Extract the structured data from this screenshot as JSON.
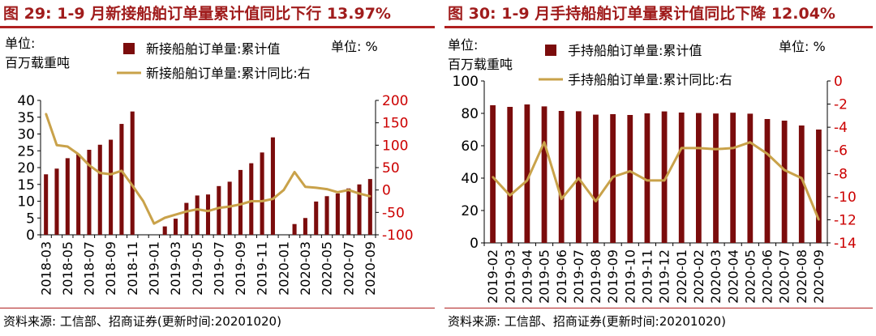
{
  "colors": {
    "bar": "#7b0c0c",
    "line": "#c9a24a",
    "title": "#a01c1c"
  },
  "charts": [
    {
      "title": "图 29:  1-9 月新接船舶订单量累计值同比下行 13.97%",
      "unit_left": "单位:\n百万载重吨",
      "unit_right": "单位:  %",
      "source": "资料来源:  工信部、招商证券(更新时间:20201020)"
    },
    {
      "title": "图 30:  1-9 月手持船舶订单量累计值同比下降 12.04%",
      "unit_left": "单位:\n百万载重吨",
      "unit_right": "单位:  %",
      "source": "资料来源:  工信部、招商证券(更新时间:20201020)"
    }
  ],
  "chart_data": [
    {
      "type": "bar",
      "categories": [
        "2018-03",
        "2018-04",
        "2018-05",
        "2018-06",
        "2018-07",
        "2018-08",
        "2018-09",
        "2018-10",
        "2018-11",
        "2018-12",
        "2019-01",
        "2019-02",
        "2019-03",
        "2019-04",
        "2019-05",
        "2019-06",
        "2019-07",
        "2019-08",
        "2019-09",
        "2019-10",
        "2019-11",
        "2019-12",
        "2020-01",
        "2020-02",
        "2020-03",
        "2020-04",
        "2020-05",
        "2020-06",
        "2020-07",
        "2020-08",
        "2020-09"
      ],
      "x_tick_labels": [
        "2018-03",
        "2018-05",
        "2018-07",
        "2018-09",
        "2018-11",
        "2019-01",
        "2019-03",
        "2019-05",
        "2019-07",
        "2019-09",
        "2019-11",
        "2020-01",
        "2020-03",
        "2020-05",
        "2020-07",
        "2020-09"
      ],
      "series": [
        {
          "name": "新接船舶订单量:累计值",
          "type": "bar",
          "axis": "left",
          "values": [
            18,
            19.7,
            22.8,
            24,
            25.3,
            26.8,
            28.3,
            33,
            36.7,
            null,
            null,
            2.5,
            4.8,
            9.5,
            11.7,
            12,
            14.5,
            15.8,
            19.3,
            21.3,
            24.5,
            29,
            null,
            3.2,
            5,
            9.9,
            11.5,
            12.3,
            13.8,
            15,
            16.6
          ]
        },
        {
          "name": "新接船舶订单量:累计同比:右",
          "type": "line",
          "axis": "right",
          "values": [
            170,
            100,
            97,
            80,
            55,
            38,
            35,
            43,
            10,
            -25,
            -75,
            -62,
            -55,
            -48,
            -43,
            -47,
            -40,
            -37,
            -32,
            -25,
            -25,
            -20,
            0,
            40,
            7,
            5,
            2,
            -5,
            0,
            -8,
            -14
          ]
        }
      ],
      "left_axis": {
        "ylim": [
          0,
          40
        ],
        "ticks": [
          0,
          5,
          10,
          15,
          20,
          25,
          30,
          35,
          40
        ]
      },
      "right_axis": {
        "ylim": [
          -100,
          200
        ],
        "ticks": [
          -100,
          -50,
          0,
          50,
          100,
          150,
          200
        ]
      },
      "legend_placement": "top-center"
    },
    {
      "type": "bar",
      "categories": [
        "2019-02",
        "2019-03",
        "2019-04",
        "2019-05",
        "2019-06",
        "2019-07",
        "2019-08",
        "2019-09",
        "2019-10",
        "2019-11",
        "2019-12",
        "2020-01",
        "2020-02",
        "2020-03",
        "2020-04",
        "2020-05",
        "2020-06",
        "2020-07",
        "2020-08",
        "2020-09"
      ],
      "series": [
        {
          "name": "手持船舶订单量:累计值",
          "type": "bar",
          "axis": "left",
          "values": [
            85,
            84,
            85.5,
            84.3,
            81.5,
            81.3,
            79.2,
            79.5,
            79,
            80,
            81.2,
            80.5,
            80.2,
            79.9,
            80.4,
            79.8,
            76.5,
            75.5,
            72.5,
            70
          ]
        },
        {
          "name": "手持船舶订单量:累计同比:右",
          "type": "line",
          "axis": "right",
          "values": [
            -8.3,
            -9.9,
            -8.6,
            -5.3,
            -10.2,
            -8.4,
            -10.4,
            -8.3,
            -7.8,
            -8.6,
            -8.6,
            -5.8,
            -5.8,
            -5.9,
            -5.8,
            -5.3,
            -6.3,
            -7.7,
            -8.4,
            -12.0
          ]
        }
      ],
      "left_axis": {
        "ylim": [
          0,
          100
        ],
        "ticks": [
          0,
          20,
          40,
          60,
          80,
          100
        ]
      },
      "right_axis": {
        "ylim": [
          -14,
          0
        ],
        "ticks": [
          -14,
          -12,
          -10,
          -8,
          -6,
          -4,
          -2,
          0
        ]
      },
      "legend_placement": "top-center"
    }
  ]
}
